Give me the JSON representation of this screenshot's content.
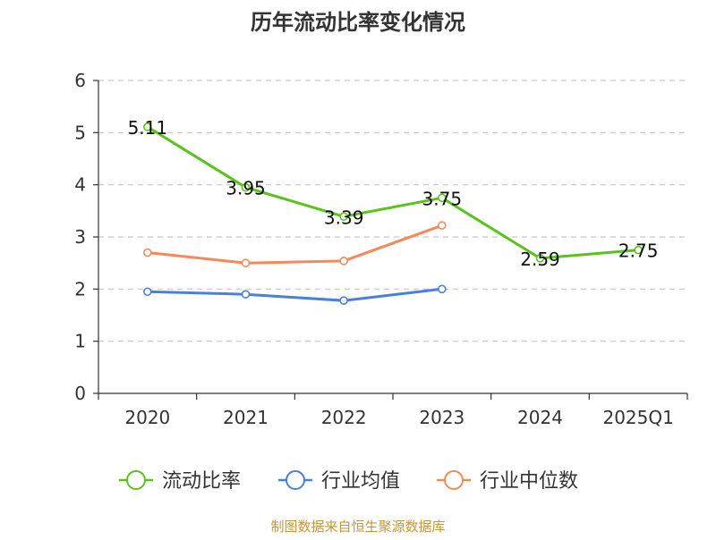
{
  "chart_data": {
    "type": "line",
    "title": "历年流动比率变化情况",
    "categories": [
      "2020",
      "2021",
      "2022",
      "2023",
      "2024",
      "2025Q1"
    ],
    "y_ticks": [
      "0",
      "1",
      "2",
      "3",
      "4",
      "5",
      "6"
    ],
    "ylim": [
      0,
      6
    ],
    "grid": true,
    "legend_position": "bottom",
    "series": [
      {
        "name": "流动比率",
        "color": "#5ac21a",
        "values": [
          5.11,
          3.95,
          3.39,
          3.75,
          2.59,
          2.75
        ],
        "labels": [
          "5.11",
          "3.95",
          "3.39",
          "3.75",
          "2.59",
          "2.75"
        ]
      },
      {
        "name": "行业均值",
        "color": "#4a7fdc",
        "values": [
          1.95,
          1.9,
          1.78,
          2.0,
          null,
          null
        ]
      },
      {
        "name": "行业中位数",
        "color": "#f4895a",
        "values": [
          2.7,
          2.5,
          2.54,
          3.22,
          null,
          null
        ]
      }
    ]
  },
  "source": "制图数据来自恒生聚源数据库"
}
